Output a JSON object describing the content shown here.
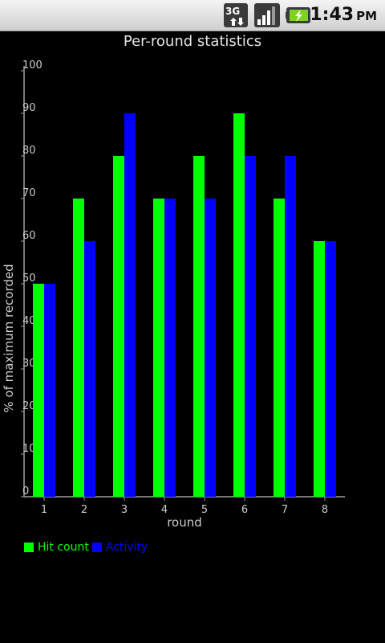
{
  "status_bar": {
    "network_label": "3G",
    "time": "1:43",
    "ampm": "PM",
    "icons": [
      "3g-data-icon",
      "signal-strength-icon",
      "battery-charging-icon"
    ]
  },
  "colors": {
    "hit_count": "#00ff00",
    "activity": "#0000ff",
    "axis": "#a0a0a0",
    "text": "#cccccc",
    "background": "#000000"
  },
  "chart_data": {
    "type": "bar",
    "title": "Per-round statistics",
    "xlabel": "round",
    "ylabel": "% of maximum recorded",
    "categories": [
      "1",
      "2",
      "3",
      "4",
      "5",
      "6",
      "7",
      "8"
    ],
    "ylim": [
      0,
      100
    ],
    "yticks": [
      0,
      10,
      20,
      30,
      40,
      50,
      60,
      70,
      80,
      90,
      100
    ],
    "grid": false,
    "legend_position": "bottom-left",
    "series": [
      {
        "name": "Hit count",
        "color": "#00ff00",
        "values": [
          50,
          70,
          80,
          70,
          80,
          90,
          70,
          60
        ]
      },
      {
        "name": "Activity",
        "color": "#0000ff",
        "values": [
          50,
          60,
          90,
          70,
          70,
          80,
          80,
          60
        ]
      }
    ]
  }
}
